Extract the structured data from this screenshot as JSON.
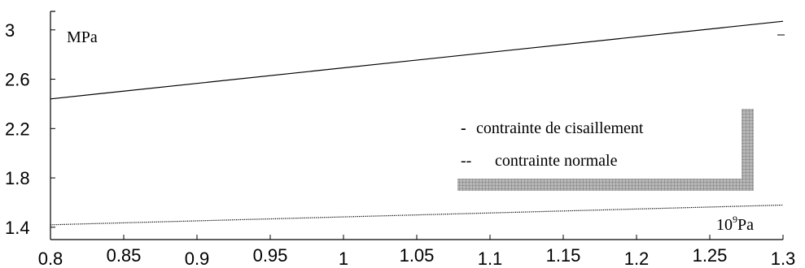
{
  "chart_data": {
    "type": "line",
    "title": "",
    "xlabel": "",
    "ylabel": "",
    "y_unit_label": "MPa",
    "x_unit_base": "10",
    "x_unit_exp": "9",
    "x_unit_suffix": "Pa",
    "xlim": [
      0.8,
      1.3
    ],
    "ylim": [
      1.3,
      3.15
    ],
    "x_ticks": [
      0.8,
      0.85,
      0.9,
      0.95,
      1,
      1.05,
      1.1,
      1.15,
      1.2,
      1.25,
      1.3
    ],
    "x_tick_labels": [
      "0.8",
      "0.85",
      "0.9",
      "0.95",
      "1",
      "1.05",
      "1.1",
      "1.15",
      "1.2",
      "1.25",
      "1.3"
    ],
    "y_ticks": [
      1.4,
      1.8,
      2.2,
      2.6,
      3.0
    ],
    "y_tick_labels": [
      "1.4",
      "1.8",
      "2.2",
      "2.6",
      "3"
    ],
    "series": [
      {
        "name": "contrainte de cisaillement",
        "style": "solid",
        "color": "#000000",
        "x": [
          0.8,
          1.3
        ],
        "y": [
          2.44,
          3.07
        ]
      },
      {
        "name": "contrainte normale",
        "style": "dotted",
        "color": "#000000",
        "x": [
          0.8,
          1.3
        ],
        "y": [
          1.42,
          1.58
        ]
      }
    ],
    "legend": {
      "placement": "right",
      "entries": [
        {
          "symbol": "-",
          "label": "contrainte de cisaillement"
        },
        {
          "symbol": "--",
          "label": "contrainte normale"
        }
      ]
    },
    "grid": false,
    "inset_shape_color": "#9a9a9a"
  }
}
